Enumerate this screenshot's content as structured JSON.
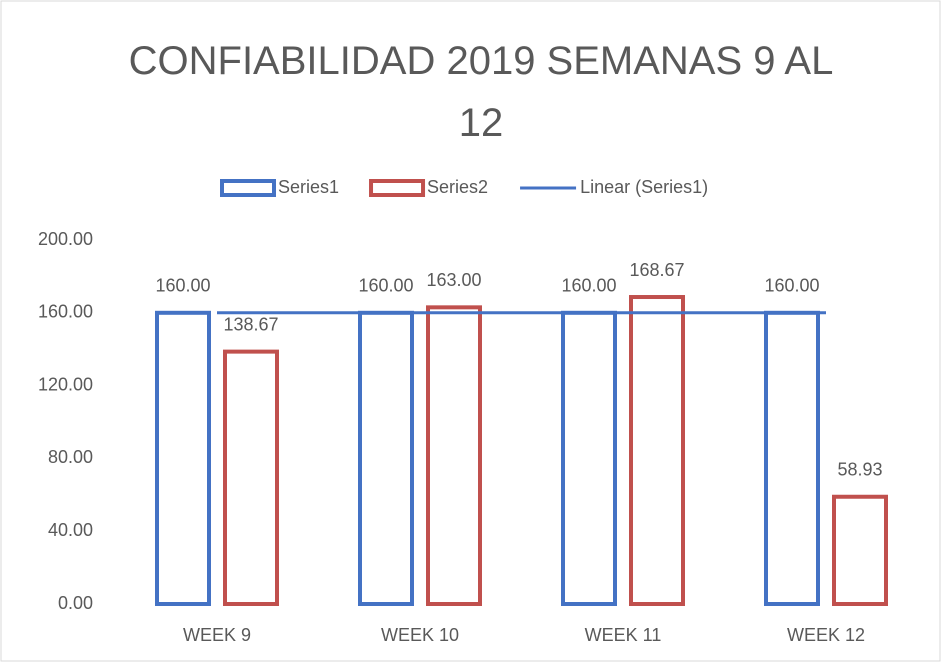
{
  "chart_data": {
    "type": "bar",
    "title": "CONFIABILIDAD 2019 SEMANAS 9 AL 12",
    "categories": [
      "WEEK 9",
      "WEEK 10",
      "WEEK 11",
      "WEEK 12"
    ],
    "series": [
      {
        "name": "Series1",
        "color": "#4472c4",
        "values": [
          160,
          160,
          160,
          160
        ],
        "value_labels": [
          "160.00",
          "160.00",
          "160.00",
          "160.00"
        ]
      },
      {
        "name": "Series2",
        "color": "#c0504d",
        "values": [
          138.67,
          163,
          168.67,
          58.93
        ],
        "value_labels": [
          "138.67",
          "163.00",
          "168.67",
          "58.93"
        ]
      }
    ],
    "trendline": {
      "name": "Linear (Series1)",
      "series": 0,
      "color": "#4472c4"
    },
    "ylim": [
      0,
      200
    ],
    "yticks": [
      {
        "value": 0,
        "label": "0.00"
      },
      {
        "value": 40,
        "label": "40.00"
      },
      {
        "value": 80,
        "label": "80.00"
      },
      {
        "value": 120,
        "label": "120.00"
      },
      {
        "value": 160,
        "label": "160.00"
      },
      {
        "value": 200,
        "label": "200.00"
      }
    ],
    "grid": false,
    "legend": "top"
  }
}
